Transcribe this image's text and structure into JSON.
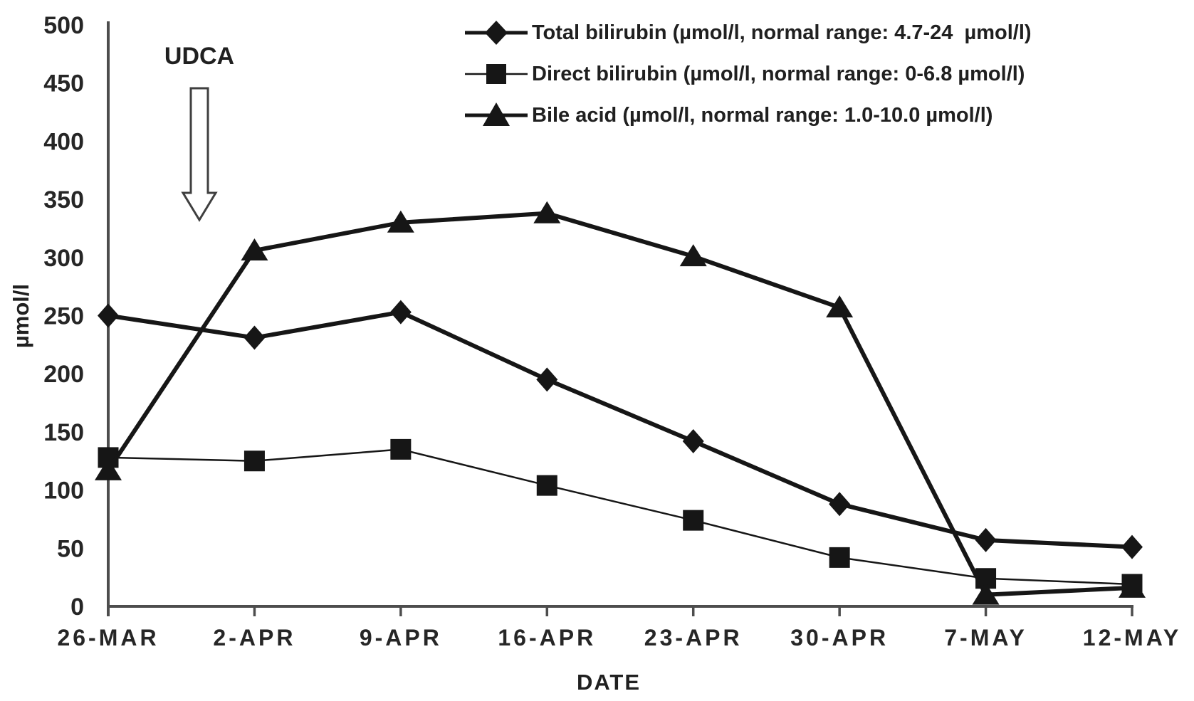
{
  "figure": {
    "y_axis_title": "µmol/l",
    "x_axis_title": "DATE",
    "annotation_label": "UDCA"
  },
  "legend": {
    "position": "top-center",
    "items": [
      {
        "marker": "diamond",
        "label": "Total bilirubin (µmol/l, normal range: 4.7-24  µmol/l)"
      },
      {
        "marker": "square",
        "label": "Direct bilirubin (µmol/l, normal range: 0-6.8 µmol/l)"
      },
      {
        "marker": "triangle",
        "label": "Bile acid (µmol/l, normal range: 1.0-10.0 µmol/l)"
      }
    ]
  },
  "chart_data": {
    "type": "line",
    "title": "",
    "xlabel": "DATE",
    "ylabel": "µmol/l",
    "ylim": [
      0,
      500
    ],
    "yticks": [
      0,
      50,
      100,
      150,
      200,
      250,
      300,
      350,
      400,
      450,
      500
    ],
    "categories": [
      "26-MAR",
      "2-APR",
      "9-APR",
      "16-APR",
      "23-APR",
      "30-APR",
      "7-MAY",
      "12-MAY"
    ],
    "series": [
      {
        "name": "Total bilirubin",
        "marker": "diamond",
        "line_width": 6,
        "values": [
          250,
          231,
          253,
          195,
          142,
          88,
          57,
          51
        ]
      },
      {
        "name": "Direct bilirubin",
        "marker": "square",
        "line_width": 2.5,
        "values": [
          128,
          125,
          135,
          104,
          74,
          42,
          24,
          19
        ]
      },
      {
        "name": "Bile acid",
        "marker": "triangle",
        "line_width": 6,
        "values": [
          117,
          306,
          330,
          338,
          301,
          257,
          10,
          16
        ]
      }
    ],
    "annotation": {
      "text": "UDCA",
      "arrow": "down",
      "between": [
        "26-MAR",
        "2-APR"
      ]
    },
    "grid": false,
    "legend_position": "top-center",
    "colors": {
      "series": "#161616",
      "axis": "#4d4d4d",
      "text": "#262626"
    }
  }
}
